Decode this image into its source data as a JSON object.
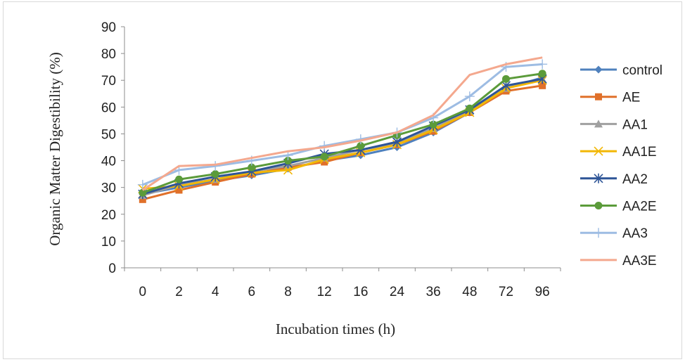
{
  "chart_data": {
    "type": "line",
    "title": "",
    "xlabel": "Incubation times (h)",
    "ylabel": "Organic Matter Digestibility (%)",
    "categories": [
      "0",
      "2",
      "4",
      "6",
      "8",
      "12",
      "16",
      "24",
      "36",
      "48",
      "72",
      "96"
    ],
    "ylim": [
      0,
      90
    ],
    "yticks": [
      0,
      10,
      20,
      30,
      40,
      50,
      60,
      70,
      80,
      90
    ],
    "grid": false,
    "legend_position": "right",
    "series": [
      {
        "name": "control",
        "color": "#4f81bd",
        "marker": "diamond",
        "values": [
          27.5,
          30,
          32.5,
          34.5,
          37,
          40,
          42,
          45,
          50.5,
          58,
          67,
          71
        ]
      },
      {
        "name": "AE",
        "color": "#e0702a",
        "marker": "square",
        "values": [
          25.5,
          29,
          32,
          35,
          37.5,
          39.5,
          43,
          46,
          51,
          58,
          66,
          68
        ]
      },
      {
        "name": "AA1",
        "color": "#a0a0a0",
        "marker": "triangle",
        "values": [
          27,
          31,
          33,
          36,
          38,
          41,
          44,
          46.5,
          52,
          58.5,
          67,
          70.5
        ]
      },
      {
        "name": "AA1E",
        "color": "#f2b705",
        "marker": "x",
        "values": [
          29.5,
          30.5,
          33,
          35.5,
          36.5,
          40.5,
          43,
          46,
          51.5,
          58,
          67,
          70
        ]
      },
      {
        "name": "AA2",
        "color": "#2e5597",
        "marker": "star",
        "values": [
          27.5,
          31.5,
          34,
          36,
          39,
          42.5,
          44,
          47,
          53,
          59,
          68,
          70.5
        ]
      },
      {
        "name": "AA2E",
        "color": "#5b9b3a",
        "marker": "circle",
        "values": [
          28,
          33,
          35,
          37.5,
          40,
          41.5,
          45.5,
          49.5,
          53.5,
          59.5,
          70.5,
          72.5
        ]
      },
      {
        "name": "AA3",
        "color": "#9dbce3",
        "marker": "plus",
        "values": [
          31,
          36.5,
          38,
          40,
          42,
          45.5,
          48,
          50.5,
          56,
          64,
          75,
          76
        ]
      },
      {
        "name": "AA3E",
        "color": "#f4a88e",
        "marker": "none",
        "values": [
          29,
          38,
          38.5,
          41,
          43.5,
          45,
          47.5,
          50.5,
          57,
          72,
          76,
          78.5
        ]
      }
    ]
  }
}
